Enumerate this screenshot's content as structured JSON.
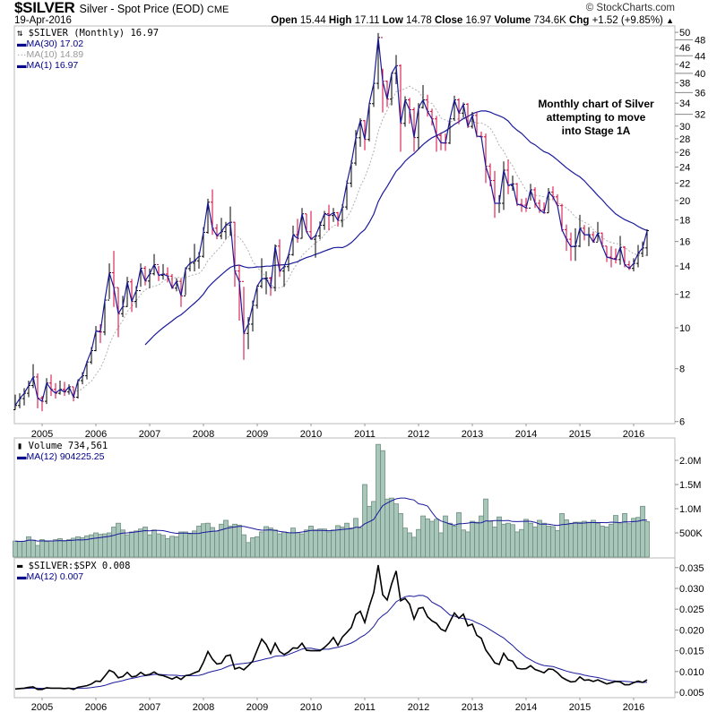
{
  "header": {
    "symbol": "$SILVER",
    "name": "Silver - Spot Price (EOD)",
    "exchange": "CME",
    "date": "19-Apr-2016",
    "open_label": "Open",
    "open": "15.44",
    "high_label": "High",
    "high": "17.11",
    "low_label": "Low",
    "low": "14.78",
    "close_label": "Close",
    "close": "16.97",
    "volume_label": "Volume",
    "volume": "734.6K",
    "chg_label": "Chg",
    "chg": "+1.52 (+9.85%)",
    "logo": "© StockCharts.com"
  },
  "price_panel": {
    "legend_main": "$SILVER (Monthly) 16.97",
    "legend_ma30": "MA(30) 17.02",
    "legend_ma10": "MA(10) 14.89",
    "legend_ma1": "MA(1) 16.97",
    "annotation_lines": [
      "Monthly chart of Silver",
      "attempting to move",
      "into Stage 1A"
    ]
  },
  "volume_panel": {
    "legend_main": "Volume 734,561",
    "legend_ma": "MA(12) 904225.25"
  },
  "ratio_panel": {
    "legend_main": "$SILVER:$SPX 0.008",
    "legend_ma": "MA(12) 0.007"
  },
  "colors": {
    "up": "#000000",
    "down": "#d4003a",
    "ma_blue": "#1a1a9c",
    "ma_gray": "#b0b0b0",
    "vol_fill": "#a9c6ba",
    "vol_edge": "#6e8f80",
    "axis": "#bbbbbb"
  },
  "chart_data": [
    {
      "type": "ohlc",
      "title": "$SILVER Silver - Spot Price (EOD) Monthly",
      "scale": "log",
      "start_month": "2004-07",
      "end_month": "2016-04",
      "x_tick_labels": [
        "2005",
        "2006",
        "2007",
        "2008",
        "2009",
        "2010",
        "2011",
        "2012",
        "2013",
        "2014",
        "2015",
        "2016"
      ],
      "y_tick_labels": [
        6,
        8,
        10,
        12,
        14,
        16,
        18,
        20,
        22,
        24,
        26,
        28,
        30,
        32,
        34,
        36,
        38,
        40,
        42,
        44,
        46,
        48,
        50
      ],
      "ylim": [
        6,
        50
      ],
      "first_open": 6.4,
      "close": [
        6.55,
        6.8,
        7.0,
        7.3,
        7.65,
        6.82,
        6.7,
        7.4,
        7.15,
        7.0,
        7.15,
        7.05,
        7.25,
        6.85,
        7.5,
        7.7,
        8.3,
        8.83,
        9.83,
        9.77,
        11.63,
        13.5,
        12.45,
        10.8,
        11.23,
        12.84,
        11.55,
        12.24,
        13.83,
        12.9,
        13.42,
        14.11,
        13.3,
        13.4,
        13.25,
        12.41,
        12.88,
        11.9,
        13.8,
        14.22,
        14.4,
        14.76,
        16.82,
        19.82,
        17.2,
        16.5,
        16.88,
        17.5,
        17.77,
        13.62,
        12.87,
        9.7,
        10.2,
        11.3,
        12.55,
        13.05,
        13.11,
        12.45,
        15.6,
        13.62,
        13.95,
        14.9,
        16.6,
        16.28,
        18.6,
        16.87,
        16.2,
        16.5,
        17.48,
        18.63,
        18.43,
        18.71,
        17.95,
        19.31,
        21.98,
        24.53,
        28.15,
        30.9,
        27.9,
        33.9,
        37.86,
        48.6,
        38.3,
        34.75,
        40.0,
        41.7,
        30.45,
        34.6,
        32.8,
        28.18,
        33.2,
        34.6,
        32.5,
        31.2,
        28.5,
        27.4,
        27.35,
        31.2,
        34.6,
        32.2,
        33.8,
        29.95,
        31.8,
        28.4,
        28.3,
        24.1,
        22.3,
        19.7,
        19.7,
        23.6,
        21.7,
        21.9,
        19.6,
        19.5,
        19.2,
        21.2,
        19.7,
        19.0,
        18.7,
        20.95,
        20.4,
        19.45,
        17.07,
        16.2,
        15.55,
        15.6,
        17.2,
        16.6,
        16.6,
        15.95,
        16.75,
        15.6,
        14.7,
        14.6,
        14.5,
        15.5,
        14.1,
        13.82,
        14.2,
        15.0,
        15.45,
        16.97
      ],
      "high": [
        6.95,
        7.0,
        7.2,
        7.5,
        8.2,
        7.8,
        6.9,
        7.6,
        7.75,
        7.4,
        7.5,
        7.45,
        7.35,
        7.25,
        7.55,
        7.85,
        8.35,
        9.0,
        10.1,
        10.2,
        11.7,
        14.2,
        15.2,
        12.45,
        11.9,
        13.2,
        13.05,
        12.55,
        14.2,
        14.0,
        13.8,
        14.95,
        14.0,
        14.15,
        13.9,
        13.4,
        13.1,
        13.1,
        13.9,
        14.65,
        15.8,
        15.1,
        17.3,
        20.2,
        21.25,
        17.6,
        18.2,
        17.8,
        19.35,
        17.8,
        14.1,
        12.5,
        10.6,
        11.6,
        12.6,
        14.6,
        13.6,
        13.2,
        15.75,
        16.2,
        14.0,
        15.0,
        17.45,
        18.1,
        19.2,
        18.6,
        18.9,
        16.6,
        17.85,
        18.9,
        19.55,
        19.2,
        18.8,
        19.6,
        22.3,
        24.9,
        29.35,
        31.3,
        31.0,
        34.0,
        38.3,
        49.8,
        41.0,
        38.45,
        40.1,
        44.2,
        42.0,
        35.3,
        35.0,
        33.2,
        34.0,
        37.5,
        35.6,
        33.0,
        31.7,
        29.0,
        28.8,
        31.2,
        35.4,
        34.9,
        34.1,
        34.0,
        32.4,
        32.4,
        29.1,
        28.8,
        24.5,
        23.5,
        20.6,
        24.75,
        25.0,
        22.9,
        22.0,
        20.2,
        20.3,
        21.9,
        21.5,
        20.1,
        19.8,
        21.4,
        21.6,
        20.7,
        19.65,
        17.55,
        16.8,
        17.2,
        18.5,
        17.5,
        17.3,
        16.9,
        17.8,
        16.8,
        15.6,
        15.6,
        15.4,
        16.5,
        15.6,
        14.4,
        14.6,
        15.7,
        16.0,
        17.11
      ],
      "low": [
        6.4,
        6.45,
        6.55,
        6.85,
        7.2,
        6.45,
        6.35,
        6.6,
        6.9,
        6.8,
        6.95,
        6.9,
        6.95,
        6.7,
        6.8,
        7.35,
        7.55,
        8.2,
        8.8,
        9.2,
        9.6,
        11.7,
        11.2,
        9.5,
        10.6,
        11.2,
        10.9,
        11.15,
        12.5,
        12.6,
        12.4,
        13.3,
        12.9,
        13.0,
        12.8,
        12.4,
        12.2,
        11.2,
        11.95,
        13.6,
        13.6,
        13.8,
        14.65,
        16.7,
        16.6,
        16.2,
        16.2,
        16.2,
        16.5,
        12.5,
        10.4,
        8.4,
        8.9,
        9.8,
        11.1,
        12.4,
        12.0,
        11.9,
        12.2,
        13.2,
        12.5,
        13.6,
        14.8,
        15.9,
        16.25,
        16.8,
        16.2,
        14.65,
        16.2,
        17.05,
        17.0,
        17.8,
        17.35,
        17.3,
        19.0,
        21.5,
        24.2,
        26.8,
        26.3,
        27.6,
        33.3,
        36.7,
        32.3,
        33.3,
        33.6,
        37.7,
        26.1,
        29.9,
        30.4,
        26.1,
        26.4,
        33.0,
        31.6,
        30.1,
        26.1,
        26.3,
        26.2,
        27.2,
        30.9,
        30.3,
        31.4,
        29.7,
        29.6,
        28.2,
        28.1,
        22.0,
        21.6,
        18.2,
        18.7,
        19.0,
        20.7,
        21.1,
        19.4,
        18.8,
        18.8,
        20.0,
        19.2,
        18.7,
        18.6,
        18.7,
        20.1,
        19.4,
        16.9,
        15.2,
        14.4,
        14.4,
        15.5,
        16.1,
        15.6,
        15.9,
        16.0,
        15.5,
        14.3,
        13.9,
        14.2,
        14.1,
        13.9,
        13.7,
        13.6,
        13.9,
        14.7,
        14.78
      ],
      "overlays": [
        "MA(30)",
        "MA(10)",
        "MA(1)"
      ]
    },
    {
      "type": "bar",
      "title": "Volume",
      "units": "thousands",
      "y_tick_labels": [
        "500K",
        "1.0M",
        "1.5M",
        "2.0M"
      ],
      "y_tick_values": [
        500,
        1000,
        1500,
        2000
      ],
      "ylim": [
        0,
        2400
      ],
      "values": [
        330,
        320,
        330,
        420,
        350,
        240,
        360,
        320,
        330,
        360,
        380,
        330,
        360,
        390,
        420,
        400,
        440,
        460,
        500,
        470,
        480,
        500,
        620,
        700,
        560,
        460,
        520,
        540,
        580,
        620,
        460,
        560,
        480,
        450,
        380,
        430,
        420,
        520,
        520,
        470,
        540,
        640,
        690,
        700,
        610,
        540,
        680,
        760,
        640,
        680,
        660,
        460,
        300,
        400,
        420,
        520,
        630,
        600,
        560,
        480,
        520,
        500,
        600,
        510,
        480,
        560,
        640,
        560,
        580,
        580,
        520,
        560,
        650,
        620,
        700,
        600,
        800,
        600,
        1500,
        1050,
        1150,
        2330,
        2200,
        1200,
        1220,
        1100,
        900,
        600,
        500,
        410,
        570,
        850,
        790,
        740,
        780,
        500,
        850,
        700,
        640,
        920,
        560,
        520,
        740,
        720,
        850,
        1200,
        740,
        620,
        830,
        680,
        700,
        670,
        520,
        570,
        780,
        700,
        620,
        760,
        700,
        640,
        630,
        550,
        900,
        770,
        700,
        720,
        720,
        740,
        720,
        760,
        700,
        640,
        620,
        680,
        860,
        690,
        900,
        690,
        800,
        820,
        1050,
        735
      ],
      "overlays": [
        "MA(12)"
      ]
    },
    {
      "type": "line",
      "title": "$SILVER:$SPX",
      "y_tick_labels": [
        "0.005",
        "0.010",
        "0.015",
        "0.020",
        "0.025",
        "0.030",
        "0.035"
      ],
      "y_tick_values": [
        0.005,
        0.01,
        0.015,
        0.02,
        0.025,
        0.03,
        0.035
      ],
      "ylim": [
        0.004,
        0.037
      ],
      "values": [
        0.0058,
        0.0059,
        0.006,
        0.0062,
        0.0063,
        0.0057,
        0.0057,
        0.0061,
        0.006,
        0.006,
        0.006,
        0.0059,
        0.006,
        0.0057,
        0.0062,
        0.0064,
        0.0066,
        0.007,
        0.0077,
        0.0076,
        0.0089,
        0.0103,
        0.0098,
        0.0085,
        0.0088,
        0.0098,
        0.0087,
        0.0089,
        0.0098,
        0.0091,
        0.0093,
        0.0099,
        0.0092,
        0.009,
        0.0086,
        0.0082,
        0.0087,
        0.0081,
        0.009,
        0.0092,
        0.0097,
        0.0101,
        0.0122,
        0.0148,
        0.013,
        0.0118,
        0.012,
        0.0137,
        0.014,
        0.0106,
        0.011,
        0.0104,
        0.0114,
        0.0125,
        0.0152,
        0.0178,
        0.0165,
        0.0143,
        0.0168,
        0.0148,
        0.0141,
        0.0147,
        0.0157,
        0.0156,
        0.0168,
        0.0151,
        0.015,
        0.015,
        0.015,
        0.0158,
        0.0168,
        0.0182,
        0.0163,
        0.0183,
        0.0194,
        0.0206,
        0.0237,
        0.0245,
        0.0218,
        0.0257,
        0.029,
        0.0356,
        0.0285,
        0.0272,
        0.0311,
        0.0342,
        0.027,
        0.0276,
        0.0262,
        0.0226,
        0.0252,
        0.0254,
        0.0232,
        0.0222,
        0.0216,
        0.0202,
        0.0197,
        0.022,
        0.0241,
        0.0228,
        0.0238,
        0.021,
        0.0214,
        0.0187,
        0.018,
        0.0152,
        0.0137,
        0.0121,
        0.0117,
        0.0144,
        0.0128,
        0.0125,
        0.0108,
        0.0106,
        0.0107,
        0.0114,
        0.0105,
        0.0101,
        0.0097,
        0.0106,
        0.0105,
        0.0097,
        0.0086,
        0.008,
        0.0075,
        0.0076,
        0.0087,
        0.0079,
        0.008,
        0.0076,
        0.008,
        0.0075,
        0.007,
        0.0073,
        0.0076,
        0.0075,
        0.0068,
        0.0068,
        0.0073,
        0.0077,
        0.0074,
        0.008
      ],
      "overlays": [
        "MA(12)"
      ]
    }
  ]
}
